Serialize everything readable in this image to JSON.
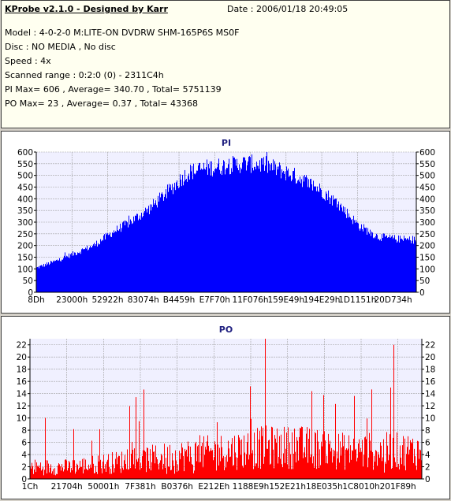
{
  "info": {
    "title": "KProbe v2.1.0 - Designed by Karr",
    "date": "Date : 2006/01/18 20:49:05",
    "model": "Model : 4-0-2-0 M:LITE-ON DVDRW SHM-165P6S MS0F",
    "disc": "Disc : NO MEDIA , No disc",
    "speed": "Speed : 4x",
    "range": "Scanned range : 0:2:0 (0) - 2311C4h",
    "pi": "PI Max= 606 , Average= 340.70 , Total= 5751139",
    "po": "PO Max= 23 , Average= 0.37 , Total= 43368"
  },
  "chart_data": [
    {
      "type": "bar",
      "title": "PI",
      "color": "#0000ff",
      "ylim": [
        0,
        600
      ],
      "yticks": [
        0,
        50,
        100,
        150,
        200,
        250,
        300,
        350,
        400,
        450,
        500,
        550,
        600
      ],
      "xtick_labels": [
        "8Dh",
        "23000h",
        "52922h",
        "83074h",
        "B4459h",
        "E7F70h",
        "11F076h",
        "159E49h",
        "194E29h",
        "1D1151h",
        "20D734h"
      ],
      "envelope_x": [
        0,
        0.05,
        0.1,
        0.15,
        0.2,
        0.25,
        0.3,
        0.35,
        0.4,
        0.45,
        0.5,
        0.55,
        0.6,
        0.65,
        0.7,
        0.75,
        0.8,
        0.85,
        0.9,
        0.95,
        1.0
      ],
      "envelope_y": [
        110,
        140,
        175,
        210,
        270,
        320,
        380,
        460,
        540,
        560,
        570,
        580,
        575,
        545,
        510,
        460,
        390,
        300,
        250,
        240,
        235
      ],
      "grid": true
    },
    {
      "type": "bar",
      "title": "PO",
      "color": "#ff0000",
      "ylim": [
        0,
        23
      ],
      "yticks": [
        0,
        2,
        4,
        6,
        8,
        10,
        12,
        14,
        16,
        18,
        20,
        22
      ],
      "xtick_labels": [
        "1Ch",
        "21704h",
        "50001h",
        "7F381h",
        "B0376h",
        "E212Eh",
        "1188E9h",
        "152E21h",
        "18E035h",
        "1C8010h",
        "201F89h"
      ],
      "envelope_x": [
        0,
        0.1,
        0.2,
        0.3,
        0.4,
        0.5,
        0.6,
        0.7,
        0.8,
        0.9,
        1.0
      ],
      "envelope_y": [
        3,
        3,
        4,
        5,
        6,
        7,
        8,
        8,
        7,
        7,
        7
      ],
      "peaks": [
        {
          "x": 0.6,
          "y": 23
        },
        {
          "x": 0.93,
          "y": 22
        }
      ],
      "grid": true
    }
  ]
}
